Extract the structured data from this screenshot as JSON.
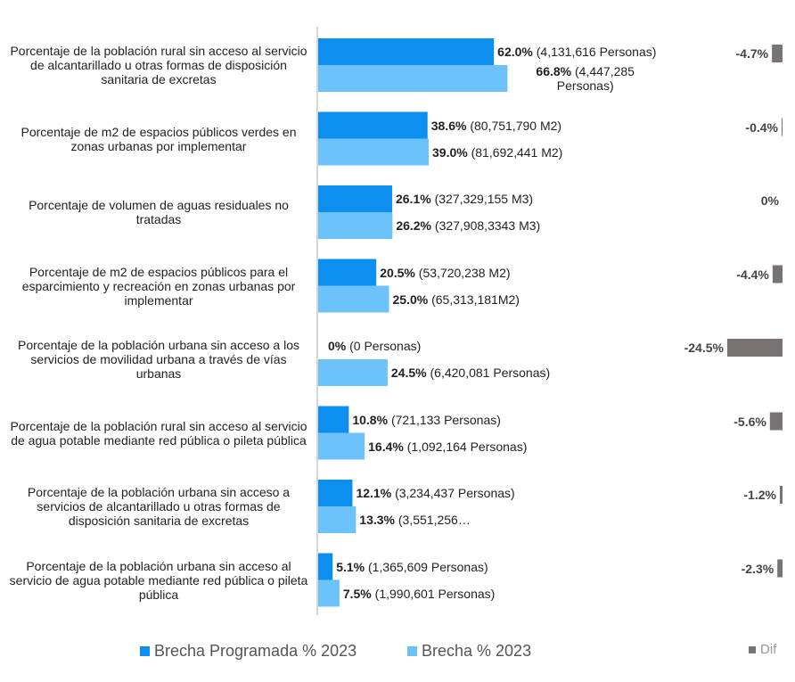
{
  "chart_data": {
    "type": "bar",
    "orientation": "horizontal",
    "categories": [
      "Porcentaje de la población rural sin acceso al servicio de alcantarillado u otras formas de disposición sanitaria de excretas",
      "Porcentaje de m2 de espacios públicos verdes en zonas urbanas por implementar",
      "Porcentaje de volumen de aguas residuales no tratadas",
      "Porcentaje de m2 de espacios públicos para el esparcimiento y recreación en zonas urbanas por implementar",
      "Porcentaje de la población urbana sin acceso a los servicios de movilidad urbana a través de vías urbanas",
      "Porcentaje de la población rural sin acceso al servicio de agua potable mediante red pública o pileta pública",
      "Porcentaje de la población urbana sin acceso a servicios de alcantarillado u otras formas de disposición sanitaria de excretas",
      "Porcentaje de la población urbana sin acceso al servicio de agua potable mediante red pública o pileta pública"
    ],
    "series": [
      {
        "name": "Brecha Programada % 2023",
        "color": "#0d8ff0",
        "values": [
          62.0,
          38.6,
          26.1,
          20.5,
          0,
          10.8,
          12.1,
          5.1
        ],
        "value_labels": [
          "62.0%",
          "38.6%",
          "26.1%",
          "20.5%",
          "0%",
          "10.8%",
          "12.1%",
          "5.1%"
        ],
        "annotations": [
          "(4,131,616 Personas)",
          "(80,751,790 M2)",
          "(327,329,155 M3)",
          "(53,720,238 M2)",
          "(0 Personas)",
          "(721,133 Personas)",
          "(3,234,437 Personas)",
          "(1,365,609 Personas)"
        ]
      },
      {
        "name": "Brecha % 2023",
        "color": "#6cc2fb",
        "values": [
          66.8,
          39.0,
          26.2,
          25.0,
          24.5,
          16.4,
          13.3,
          7.5
        ],
        "value_labels": [
          "66.8%",
          "39.0%",
          "26.2%",
          "25.0%",
          "24.5%",
          "16.4%",
          "13.3%",
          "7.5%"
        ],
        "annotations": [
          "(4,447,285 Personas)",
          "(81,692,441 M2)",
          "(327,908,3343 M3)",
          "(65,313,181M2)",
          "(6,420,081 Personas)",
          "(1,092,164 Personas)",
          "(3,551,256…",
          "(1,990,601 Personas)"
        ]
      },
      {
        "name": "Dif",
        "color": "#7a7373",
        "axis": "x2",
        "values": [
          -4.7,
          -0.4,
          0,
          -4.4,
          -24.5,
          -5.6,
          -1.2,
          -2.3
        ],
        "value_labels": [
          "-4.7%",
          "-0.4%",
          "0%",
          "-4.4%",
          "-24.5%",
          "-5.6%",
          "-1.2%",
          "-2.3%"
        ]
      }
    ],
    "xlim": [
      0,
      100
    ],
    "x2lim": [
      -30,
      0
    ]
  }
}
